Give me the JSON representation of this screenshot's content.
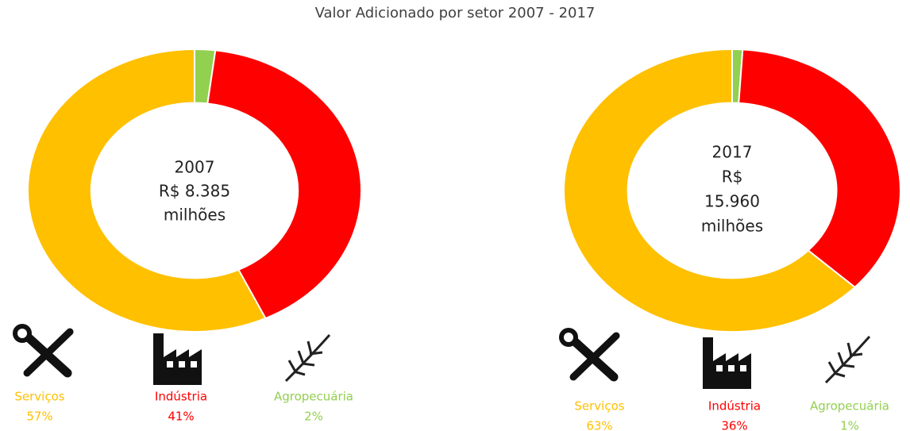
{
  "title": "Valor Adicionado por setor 2007 - 2017",
  "chart_data": [
    {
      "type": "donut",
      "center_text": [
        "2007",
        "R$ 8.385",
        "milhões"
      ],
      "categories": [
        "Serviços",
        "Indústria",
        "Agropecuária"
      ],
      "values": [
        57,
        41,
        2
      ],
      "value_labels": [
        "57%",
        "41%",
        "2%"
      ],
      "colors": [
        "#FFC000",
        "#FF0000",
        "#92D050"
      ]
    },
    {
      "type": "donut",
      "center_text": [
        "2017",
        "R$",
        "15.960",
        "milhões"
      ],
      "categories": [
        "Serviços",
        "Indústria",
        "Agropecuária"
      ],
      "values": [
        63,
        36,
        1
      ],
      "value_labels": [
        "63%",
        "36%",
        "1%"
      ],
      "colors": [
        "#FFC000",
        "#FF0000",
        "#92D050"
      ]
    }
  ]
}
